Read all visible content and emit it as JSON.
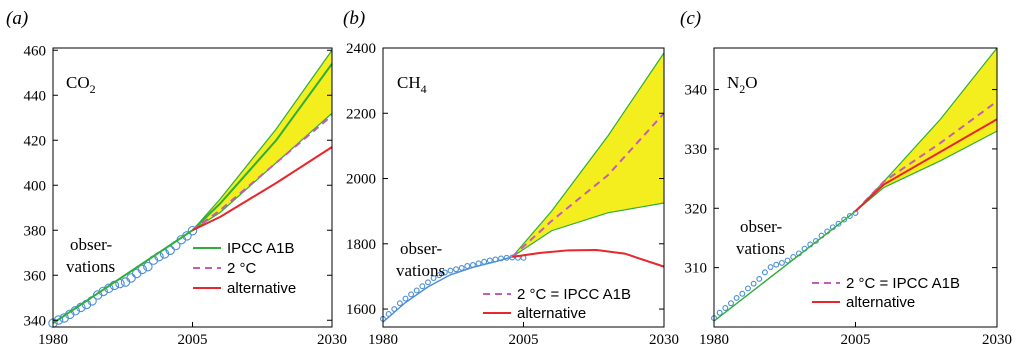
{
  "chart_data": [
    {
      "type": "line",
      "panel_label": "(a)",
      "gas_label": "CO",
      "gas_subscript": "2",
      "observations_label": [
        "obser-",
        "vations"
      ],
      "xlim": [
        1980,
        2030
      ],
      "ylim": [
        337,
        461
      ],
      "x_ticks": [
        "1980",
        "2005",
        "2030"
      ],
      "y_ticks": [
        "340",
        "360",
        "380",
        "400",
        "420",
        "440",
        "460"
      ],
      "legend": [
        "IPCC A1B",
        "2 °C",
        "alternative"
      ],
      "colors": {
        "band": "#f4ee1e",
        "ipcc": "#2fae3a",
        "two_deg": "#c65bb6",
        "alt": "#e8262b",
        "obs": "#4a8ed6"
      },
      "band_upper": {
        "x": [
          2005,
          2010,
          2020,
          2030
        ],
        "y": [
          380,
          394,
          425,
          460
        ]
      },
      "band_lower": {
        "x": [
          2005,
          2010,
          2020,
          2030
        ],
        "y": [
          380,
          388,
          410,
          432
        ]
      },
      "series": [
        {
          "name": "IPCC A1B",
          "style": "solid",
          "x": [
            1980,
            2005,
            2010,
            2020,
            2030
          ],
          "y": [
            338.7,
            380,
            392,
            420,
            454
          ]
        },
        {
          "name": "2 °C",
          "style": "dashed",
          "x": [
            2005,
            2010,
            2020,
            2030
          ],
          "y": [
            380,
            389,
            410,
            431
          ]
        },
        {
          "name": "alternative",
          "style": "solid",
          "x": [
            2005,
            2010,
            2020,
            2030
          ],
          "y": [
            380,
            386,
            401,
            417
          ]
        }
      ],
      "observations": {
        "x": [
          1980,
          1981,
          1982,
          1983,
          1984,
          1985,
          1986,
          1987,
          1988,
          1989,
          1990,
          1991,
          1992,
          1993,
          1994,
          1995,
          1996,
          1997,
          1998,
          1999,
          2000,
          2001,
          2002,
          2003,
          2004,
          2005
        ],
        "y": [
          338.7,
          340.1,
          341.0,
          342.6,
          344.2,
          345.7,
          347.0,
          348.6,
          351.2,
          352.8,
          354.2,
          355.5,
          356.3,
          357.0,
          358.8,
          360.8,
          362.6,
          363.8,
          366.7,
          368.3,
          369.5,
          371.1,
          373.2,
          375.8,
          377.5,
          379.8
        ]
      }
    },
    {
      "type": "line",
      "panel_label": "(b)",
      "gas_label": "CH",
      "gas_subscript": "4",
      "observations_label": [
        "obser-",
        "vations"
      ],
      "xlim": [
        1980,
        2030
      ],
      "ylim": [
        1545,
        2400
      ],
      "x_ticks": [
        "1980",
        "2005",
        "2030"
      ],
      "y_ticks": [
        "1600",
        "1800",
        "2000",
        "2200",
        "2400"
      ],
      "legend": [
        "2 °C = IPCC A1B",
        "alternative"
      ],
      "colors": {
        "band": "#f4ee1e",
        "ipcc": "#2fae3a",
        "two_deg": "#c65bb6",
        "alt": "#e8262b",
        "obs": "#4a8ed6"
      },
      "band_upper": {
        "x": [
          2003,
          2010,
          2020,
          2030
        ],
        "y": [
          1760,
          1900,
          2130,
          2385
        ]
      },
      "band_lower": {
        "x": [
          2003,
          2010,
          2020,
          2030
        ],
        "y": [
          1760,
          1840,
          1895,
          1925
        ]
      },
      "series": [
        {
          "name": "2 °C = IPCC A1B",
          "style": "dashed",
          "x": [
            2003,
            2010,
            2020,
            2030
          ],
          "y": [
            1760,
            1870,
            2010,
            2200
          ]
        },
        {
          "name": "alternative",
          "style": "solid",
          "x": [
            2003,
            2008,
            2013,
            2018,
            2023,
            2030
          ],
          "y": [
            1760,
            1772,
            1780,
            1781,
            1770,
            1730
          ]
        },
        {
          "name": "fit",
          "style": "solid-blue",
          "x": [
            1980,
            1984,
            1988,
            1992,
            1996,
            2000,
            2003
          ],
          "y": [
            1560,
            1620,
            1668,
            1705,
            1728,
            1745,
            1760
          ]
        }
      ],
      "observations": {
        "x": [
          1980,
          1981,
          1982,
          1983,
          1984,
          1985,
          1986,
          1987,
          1988,
          1989,
          1990,
          1991,
          1992,
          1993,
          1994,
          1995,
          1996,
          1997,
          1998,
          1999,
          2000,
          2001,
          2002,
          2003,
          2004,
          2005
        ],
        "y": [
          1570,
          1585,
          1600,
          1618,
          1632,
          1645,
          1657,
          1670,
          1682,
          1695,
          1704,
          1712,
          1718,
          1722,
          1726,
          1732,
          1735,
          1740,
          1745,
          1749,
          1752,
          1755,
          1757,
          1758,
          1757,
          1757
        ]
      }
    },
    {
      "type": "line",
      "panel_label": "(c)",
      "gas_label": "N",
      "gas_subscript": "2",
      "gas_suffix": "O",
      "observations_label": [
        "obser-",
        "vations"
      ],
      "xlim": [
        1980,
        2030
      ],
      "ylim": [
        300,
        347
      ],
      "x_ticks": [
        "1980",
        "2005",
        "2030"
      ],
      "y_ticks": [
        "310",
        "320",
        "330",
        "340"
      ],
      "legend": [
        "2 °C = IPCC A1B",
        "alternative"
      ],
      "colors": {
        "band": "#f4ee1e",
        "ipcc": "#2fae3a",
        "two_deg": "#c65bb6",
        "alt": "#e8262b",
        "obs": "#4a8ed6"
      },
      "band_upper": {
        "x": [
          2005,
          2010,
          2020,
          2030
        ],
        "y": [
          319.5,
          324.5,
          335,
          347
        ]
      },
      "band_lower": {
        "x": [
          2005,
          2010,
          2020,
          2030
        ],
        "y": [
          319.5,
          323.5,
          328,
          333
        ]
      },
      "series": [
        {
          "name": "fit",
          "style": "solid-green",
          "x": [
            1980,
            2005
          ],
          "y": [
            301,
            319.5
          ]
        },
        {
          "name": "2 °C = IPCC A1B",
          "style": "dashed",
          "x": [
            2005,
            2010,
            2020,
            2030
          ],
          "y": [
            319.5,
            324.5,
            331,
            338
          ]
        },
        {
          "name": "alternative",
          "style": "solid",
          "x": [
            2005,
            2010,
            2020,
            2030
          ],
          "y": [
            319.5,
            324,
            329.5,
            335
          ]
        }
      ],
      "observations": {
        "x": [
          1980,
          1981,
          1982,
          1983,
          1984,
          1985,
          1986,
          1987,
          1988,
          1989,
          1990,
          1991,
          1992,
          1993,
          1994,
          1995,
          1996,
          1997,
          1998,
          1999,
          2000,
          2001,
          2002,
          2003,
          2004,
          2005
        ],
        "y": [
          301.5,
          302.4,
          303.2,
          304.0,
          304.9,
          305.6,
          306.5,
          307.3,
          308.1,
          309.2,
          310.1,
          310.5,
          310.8,
          311.2,
          311.8,
          312.4,
          313.2,
          313.9,
          314.5,
          315.4,
          316.1,
          316.8,
          317.4,
          318.1,
          318.7,
          319.2
        ]
      }
    }
  ]
}
